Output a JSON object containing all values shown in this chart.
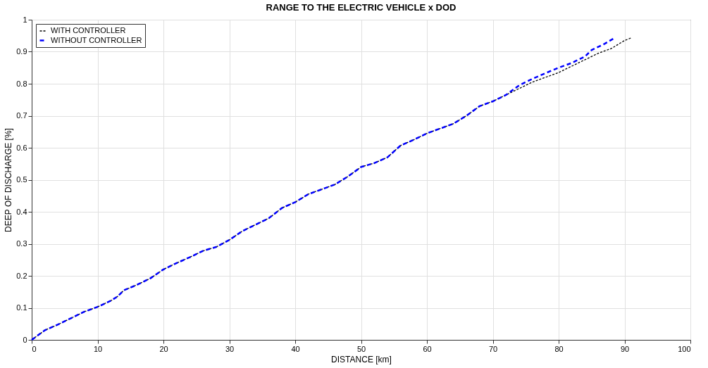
{
  "chart_data": {
    "type": "line",
    "title": "RANGE TO THE ELECTRIC VEHICLE x DOD",
    "xlabel": "DISTANCE [km]",
    "ylabel": "DEEP OF DISCHARGE [%]",
    "series": [
      {
        "name": "WITH CONTROLLER",
        "color": "#000000",
        "x": [
          0,
          2,
          4,
          6,
          8,
          10,
          12,
          13,
          14,
          16,
          18,
          20,
          22,
          24,
          26,
          28,
          30,
          32,
          34,
          36,
          38,
          40,
          42,
          44,
          46,
          48,
          50,
          52,
          54,
          56,
          58,
          60,
          62,
          64,
          66,
          68,
          70,
          72,
          74,
          76,
          78,
          80,
          82,
          84,
          86,
          88,
          90,
          91
        ],
        "values": [
          0,
          0.03,
          0.048,
          0.068,
          0.088,
          0.103,
          0.122,
          0.135,
          0.155,
          0.172,
          0.192,
          0.22,
          0.24,
          0.258,
          0.278,
          0.29,
          0.312,
          0.34,
          0.36,
          0.38,
          0.412,
          0.43,
          0.455,
          0.47,
          0.485,
          0.51,
          0.54,
          0.552,
          0.57,
          0.607,
          0.625,
          0.645,
          0.66,
          0.675,
          0.7,
          0.73,
          0.745,
          0.765,
          0.785,
          0.805,
          0.82,
          0.835,
          0.855,
          0.875,
          0.895,
          0.91,
          0.935,
          0.943
        ]
      },
      {
        "name": "WITHOUT CONTROLLER",
        "color": "#0000ff",
        "x": [
          0,
          2,
          4,
          6,
          8,
          10,
          12,
          13,
          14,
          16,
          18,
          20,
          22,
          24,
          26,
          28,
          30,
          32,
          34,
          36,
          38,
          40,
          42,
          44,
          46,
          48,
          50,
          52,
          54,
          56,
          58,
          60,
          62,
          64,
          66,
          68,
          70,
          72,
          74,
          76,
          78,
          80,
          82,
          84,
          85,
          87,
          88.5
        ],
        "values": [
          0,
          0.03,
          0.048,
          0.068,
          0.088,
          0.103,
          0.122,
          0.135,
          0.155,
          0.172,
          0.192,
          0.22,
          0.24,
          0.258,
          0.278,
          0.29,
          0.312,
          0.34,
          0.36,
          0.38,
          0.412,
          0.43,
          0.455,
          0.47,
          0.485,
          0.51,
          0.54,
          0.552,
          0.57,
          0.607,
          0.625,
          0.645,
          0.66,
          0.675,
          0.7,
          0.73,
          0.745,
          0.765,
          0.795,
          0.815,
          0.833,
          0.85,
          0.865,
          0.885,
          0.905,
          0.925,
          0.943
        ]
      }
    ],
    "xlim": [
      0,
      100
    ],
    "xticks": [
      0,
      10,
      20,
      30,
      40,
      50,
      60,
      70,
      80,
      90,
      100
    ],
    "ylim": [
      0,
      1
    ],
    "yticks": [
      0,
      0.1,
      0.2,
      0.3,
      0.4,
      0.5,
      0.6,
      0.7,
      0.8,
      0.9,
      1
    ],
    "grid": true,
    "legend": "top left",
    "line_style": "dashed",
    "marker": "none"
  }
}
